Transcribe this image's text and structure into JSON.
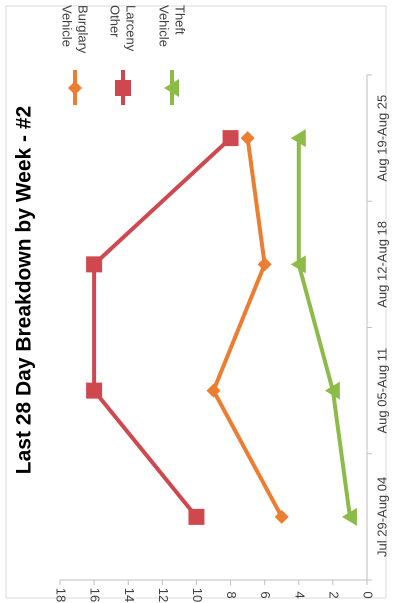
{
  "chart_data": {
    "type": "line",
    "title": "Last 28 Day Breakdown by Week - #2",
    "xlabel": "",
    "ylabel": "",
    "categories": [
      "Jul 29-Aug 04",
      "Aug 05-Aug 11",
      "Aug 12-Aug 18",
      "Aug 19-Aug 25"
    ],
    "ylim": [
      0,
      18
    ],
    "yticks": [
      "0",
      "2",
      "4",
      "6",
      "8",
      "10",
      "12",
      "14",
      "16",
      "18"
    ],
    "grid": false,
    "legend_position": "top-right",
    "orientation": "rotated 90 degrees clockwise",
    "series": [
      {
        "name": "Vehicle Burglary",
        "name_lines": [
          "Vehicle",
          "Burglary"
        ],
        "values": [
          5,
          9,
          6,
          7
        ],
        "color": "#ED7D31",
        "marker": "diamond"
      },
      {
        "name": "Other Larceny",
        "name_lines": [
          "Other",
          "Larceny"
        ],
        "values": [
          10,
          16,
          16,
          8
        ],
        "color": "#D0484F",
        "marker": "square"
      },
      {
        "name": "Vehicle Theft",
        "name_lines": [
          "Vehicle",
          "Theft"
        ],
        "values": [
          1,
          2,
          4,
          4
        ],
        "color": "#8DBB48",
        "marker": "triangle"
      }
    ]
  }
}
